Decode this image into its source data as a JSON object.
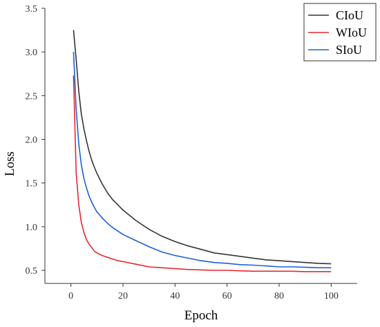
{
  "chart_data": {
    "type": "line",
    "title": "",
    "xlabel": "Epoch",
    "ylabel": "Loss",
    "xlim": [
      -10,
      110
    ],
    "ylim": [
      0.35,
      3.5
    ],
    "xticks": [
      0,
      20,
      40,
      60,
      80,
      100
    ],
    "xtick_labels": [
      "0",
      "20",
      "40",
      "60",
      "80",
      "100"
    ],
    "yticks": [
      0.5,
      1.0,
      1.5,
      2.0,
      2.5,
      3.0,
      3.5
    ],
    "ytick_labels": [
      "0.5",
      "1.0",
      "1.5",
      "2.0",
      "2.5",
      "3.0",
      "3.5"
    ],
    "grid": false,
    "legend_position": "top-right",
    "x": [
      1,
      2,
      3,
      4,
      5,
      6,
      7,
      8,
      9,
      10,
      12,
      14,
      16,
      18,
      20,
      25,
      30,
      35,
      40,
      45,
      50,
      55,
      60,
      65,
      70,
      75,
      80,
      85,
      90,
      95,
      100
    ],
    "series": [
      {
        "name": "CIoU",
        "color": "#333333",
        "values": [
          3.25,
          2.92,
          2.55,
          2.29,
          2.12,
          1.98,
          1.86,
          1.76,
          1.68,
          1.61,
          1.49,
          1.39,
          1.31,
          1.25,
          1.19,
          1.07,
          0.97,
          0.89,
          0.83,
          0.78,
          0.74,
          0.7,
          0.68,
          0.66,
          0.64,
          0.62,
          0.61,
          0.6,
          0.59,
          0.58,
          0.575
        ]
      },
      {
        "name": "WIoU",
        "color": "#e8262b",
        "values": [
          2.73,
          1.62,
          1.25,
          1.05,
          0.93,
          0.85,
          0.8,
          0.76,
          0.72,
          0.7,
          0.67,
          0.65,
          0.63,
          0.61,
          0.6,
          0.57,
          0.54,
          0.53,
          0.52,
          0.51,
          0.505,
          0.5,
          0.5,
          0.495,
          0.49,
          0.49,
          0.49,
          0.49,
          0.485,
          0.485,
          0.485
        ]
      },
      {
        "name": "SIoU",
        "color": "#1a5fd8",
        "values": [
          3.0,
          2.35,
          1.95,
          1.71,
          1.55,
          1.44,
          1.35,
          1.28,
          1.22,
          1.17,
          1.1,
          1.04,
          0.99,
          0.95,
          0.91,
          0.84,
          0.77,
          0.71,
          0.67,
          0.64,
          0.61,
          0.59,
          0.58,
          0.565,
          0.56,
          0.55,
          0.54,
          0.54,
          0.535,
          0.53,
          0.53
        ]
      }
    ]
  }
}
